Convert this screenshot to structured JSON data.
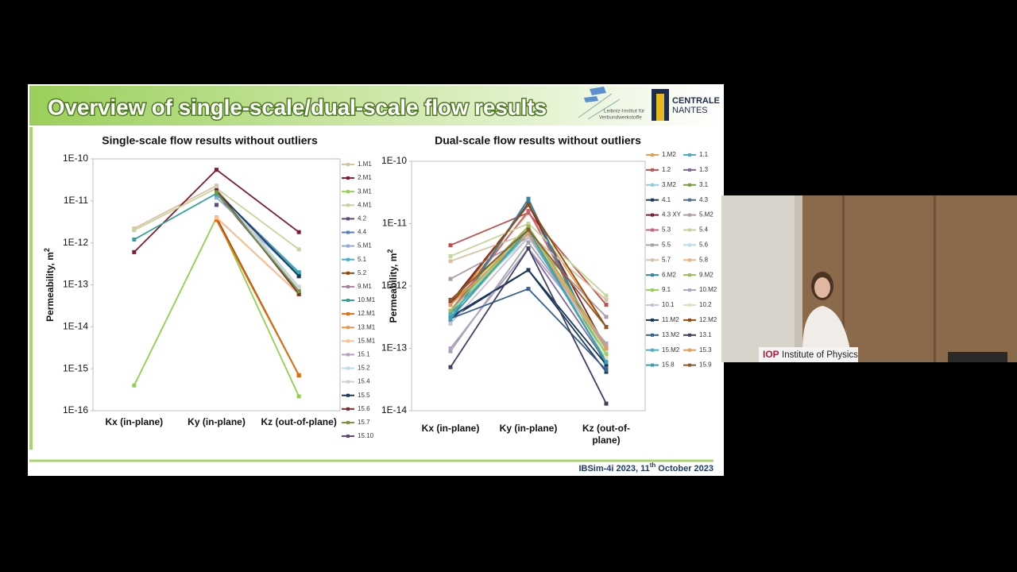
{
  "slide": {
    "title": "Overview of single-scale/dual-scale flow results",
    "logo_left": [
      "Leibniz-Institut für",
      "Verbundwerkstoffe"
    ],
    "logo_right": [
      "CENTRALE",
      "NANTES"
    ],
    "footer": [
      "IBSim-4i 2023, 11",
      "th",
      "October 2023"
    ]
  },
  "video": {
    "overlay_logo": "IOP",
    "overlay_name": "Institute of Physics"
  },
  "chart_data": [
    {
      "type": "line",
      "title": "Single-scale flow results without outliers",
      "ylabel": "Permeability, m",
      "ylabel_sup": "2",
      "log_scale": true,
      "grid": false,
      "categories": [
        "Kx (in-plane)",
        "Ky (in-plane)",
        "Kz (out-of-plane)"
      ],
      "ylim": [
        1e-16,
        1e-10
      ],
      "yticks": [
        {
          "value": 1e-16,
          "label": "1E-16"
        },
        {
          "value": 1e-15,
          "label": "1E-15"
        },
        {
          "value": 1e-14,
          "label": "1E-14"
        },
        {
          "value": 1e-13,
          "label": "1E-13"
        },
        {
          "value": 1e-12,
          "label": "1E-12"
        },
        {
          "value": 1e-11,
          "label": "1E-11"
        },
        {
          "value": 1e-10,
          "label": "1E-10"
        }
      ],
      "legend": "right",
      "series": [
        {
          "name": "1.M1",
          "color": "#d9c3a5",
          "values": [
            2.2e-12,
            2.3e-11,
            null
          ]
        },
        {
          "name": "2.M1",
          "color": "#7b1c30",
          "values": [
            6e-13,
            5.5e-11,
            1.8e-12
          ]
        },
        {
          "name": "3.M1",
          "color": "#92d050",
          "values": [
            4e-16,
            4e-12,
            2.2e-16
          ]
        },
        {
          "name": "4.M1",
          "color": "#c3d69b",
          "values": [
            2e-12,
            2e-11,
            7e-13
          ]
        },
        {
          "name": "4.2",
          "color": "#5f497a",
          "values": [
            null,
            1.5e-11,
            7e-14
          ]
        },
        {
          "name": "4.4",
          "color": "#4f81bd",
          "values": [
            null,
            1.6e-11,
            2e-13
          ]
        },
        {
          "name": "5.M1",
          "color": "#8ea9db",
          "values": [
            null,
            1.2e-11,
            1.7e-13
          ]
        },
        {
          "name": "5.1",
          "color": "#4bacc6",
          "values": [
            null,
            1.4e-11,
            2e-13
          ]
        },
        {
          "name": "5.2",
          "color": "#984807",
          "values": [
            null,
            4e-12,
            7e-16
          ]
        },
        {
          "name": "9.M1",
          "color": "#b07a9a",
          "values": [
            null,
            4e-12,
            6e-14
          ]
        },
        {
          "name": "10.M1",
          "color": "#31a39c",
          "values": [
            1.2e-12,
            1.5e-11,
            1.8e-13
          ]
        },
        {
          "name": "12.M1",
          "color": "#e46c0a",
          "values": [
            null,
            3.5e-12,
            7e-16
          ]
        },
        {
          "name": "13.M1",
          "color": "#f79646",
          "values": [
            null,
            4e-12,
            6e-14
          ]
        },
        {
          "name": "15.M1",
          "color": "#fac090",
          "values": [
            null,
            4e-12,
            6e-14
          ]
        },
        {
          "name": "15.1",
          "color": "#b3a2c7",
          "values": [
            null,
            2e-11,
            7e-14
          ]
        },
        {
          "name": "15.2",
          "color": "#b7dde8",
          "values": [
            null,
            1.8e-11,
            8e-14
          ]
        },
        {
          "name": "15.4",
          "color": "#d0d0d0",
          "values": [
            null,
            2e-11,
            9e-14
          ]
        },
        {
          "name": "15.5",
          "color": "#17375e",
          "values": [
            null,
            1.7e-11,
            1.6e-13
          ]
        },
        {
          "name": "15.6",
          "color": "#7b2c2c",
          "values": [
            null,
            1.8e-11,
            6e-14
          ]
        },
        {
          "name": "15.7",
          "color": "#77933c",
          "values": [
            null,
            1.6e-11,
            7e-14
          ]
        },
        {
          "name": "15.10",
          "color": "#604a7b",
          "values": [
            null,
            8e-12,
            null
          ]
        }
      ]
    },
    {
      "type": "line",
      "title": "Dual-scale flow results without outliers",
      "ylabel": "Permeability, m",
      "ylabel_sup": "2",
      "log_scale": true,
      "grid": false,
      "categories": [
        "Kx (in-plane)",
        "Ky (in-plane)",
        "Kz (out-of-plane)"
      ],
      "ylim": [
        1e-14,
        1e-10
      ],
      "yticks": [
        {
          "value": 1e-14,
          "label": "1E-14"
        },
        {
          "value": 1e-13,
          "label": "1E-13"
        },
        {
          "value": 1e-12,
          "label": "1E-12"
        },
        {
          "value": 1e-11,
          "label": "1E-11"
        },
        {
          "value": 1e-10,
          "label": "1E-10"
        }
      ],
      "legend": "right",
      "series": [
        {
          "name": "1.M2",
          "color": "#e8a050",
          "values": [
            5e-13,
            1.5e-11,
            2.2e-13
          ]
        },
        {
          "name": "1.1",
          "color": "#4bacc6",
          "values": [
            3e-13,
            2.5e-11,
            6e-14
          ]
        },
        {
          "name": "1.2",
          "color": "#c0504d",
          "values": [
            4.5e-12,
            1.5e-11,
            5e-13
          ]
        },
        {
          "name": "1.3",
          "color": "#7f6aa0",
          "values": [
            1e-13,
            4e-12,
            6e-14
          ]
        },
        {
          "name": "3.M2",
          "color": "#93cddd",
          "values": [
            4e-13,
            8e-12,
            1e-13
          ]
        },
        {
          "name": "3.1",
          "color": "#77a03b",
          "values": [
            5e-13,
            9e-12,
            9e-14
          ]
        },
        {
          "name": "4.1",
          "color": "#1f3864",
          "values": [
            3e-13,
            1.8e-12,
            4.2e-14
          ]
        },
        {
          "name": "4.3",
          "color": "#4f6d8a",
          "values": [
            3.5e-13,
            2.2e-11,
            5e-14
          ]
        },
        {
          "name": "4.3 XY",
          "color": "#7b1c30",
          "values": [
            5.5e-13,
            2e-11,
            1e-13
          ]
        },
        {
          "name": "5.M2",
          "color": "#b09aa8",
          "values": [
            1.3e-12,
            6e-12,
            3.2e-13
          ]
        },
        {
          "name": "5.3",
          "color": "#d0607a",
          "values": [
            4e-13,
            1.6e-11,
            8e-14
          ]
        },
        {
          "name": "5.4",
          "color": "#c3d69b",
          "values": [
            3e-12,
            1e-11,
            7e-13
          ]
        },
        {
          "name": "5.5",
          "color": "#a5a5a5",
          "values": [
            9e-14,
            5e-12,
            1e-13
          ]
        },
        {
          "name": "5.6",
          "color": "#b7dde8",
          "values": [
            4e-13,
            6e-12,
            9e-14
          ]
        },
        {
          "name": "5.7",
          "color": "#d9c3a5",
          "values": [
            2.5e-12,
            7e-12,
            6e-13
          ]
        },
        {
          "name": "5.8",
          "color": "#f2b183",
          "values": [
            6e-13,
            8e-12,
            1e-13
          ]
        },
        {
          "name": "6.M2",
          "color": "#31859c",
          "values": [
            2.8e-13,
            2.5e-11,
            5.5e-14
          ]
        },
        {
          "name": "9.M2",
          "color": "#9bbb59",
          "values": [
            4e-13,
            9e-12,
            1.1e-13
          ]
        },
        {
          "name": "9.1",
          "color": "#92d050",
          "values": [
            3.5e-13,
            8e-12,
            8e-14
          ]
        },
        {
          "name": "10.M2",
          "color": "#b3a2c7",
          "values": [
            1e-13,
            4e-12,
            1.2e-13
          ]
        },
        {
          "name": "10.1",
          "color": "#ccc0da",
          "values": [
            2.5e-13,
            6e-12,
            1e-13
          ]
        },
        {
          "name": "10.2",
          "color": "#d7e4bd",
          "values": [
            3e-13,
            7e-12,
            7e-14
          ]
        },
        {
          "name": "11.M2",
          "color": "#17375e",
          "values": [
            3.2e-13,
            1.8e-12,
            5.5e-14
          ]
        },
        {
          "name": "12.M2",
          "color": "#984807",
          "values": [
            5e-13,
            2e-11,
            2.2e-13
          ]
        },
        {
          "name": "13.M2",
          "color": "#366092",
          "values": [
            3e-13,
            9e-13,
            4.5e-14
          ]
        },
        {
          "name": "13.1",
          "color": "#404060",
          "values": [
            5e-14,
            4e-12,
            1.3e-14
          ]
        },
        {
          "name": "15.M2",
          "color": "#4bacc6",
          "values": [
            3.5e-13,
            7e-12,
            6e-14
          ]
        },
        {
          "name": "15.3",
          "color": "#e59a55",
          "values": [
            5e-13,
            7e-12,
            1e-13
          ]
        },
        {
          "name": "15.8",
          "color": "#3a9fb0",
          "values": [
            3e-13,
            8e-12,
            6e-14
          ]
        },
        {
          "name": "15.9",
          "color": "#8a5a2b",
          "values": [
            6e-13,
            8e-12,
            2.2e-13
          ]
        }
      ]
    }
  ]
}
